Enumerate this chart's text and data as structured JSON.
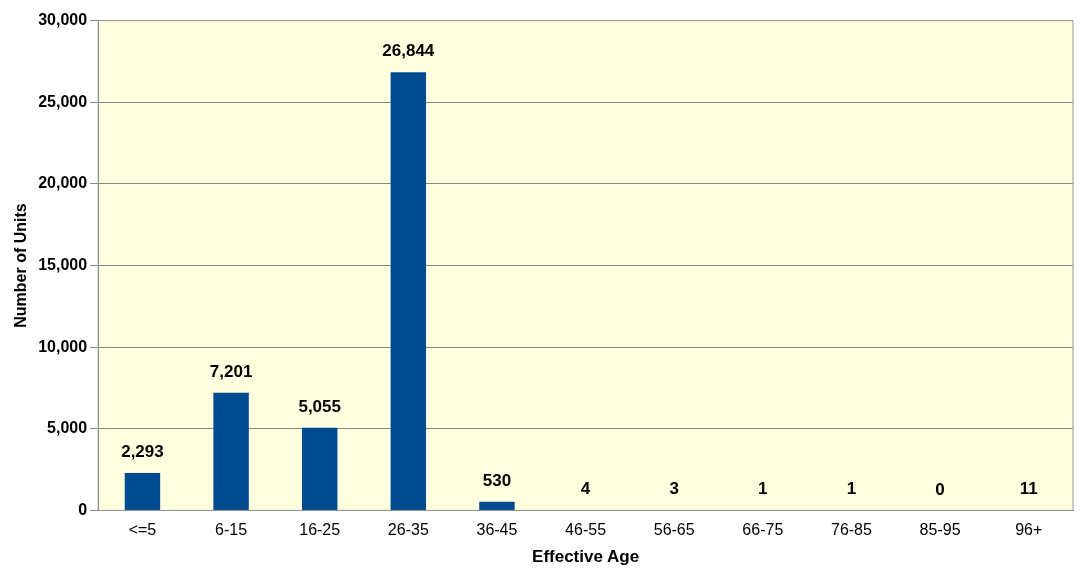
{
  "chart_data": {
    "type": "bar",
    "xlabel": "Effective Age",
    "ylabel": "Number of Units",
    "categories": [
      "<=5",
      "6-15",
      "16-25",
      "26-35",
      "36-45",
      "46-55",
      "56-65",
      "66-75",
      "76-85",
      "85-95",
      "96+"
    ],
    "values": [
      2293,
      7201,
      5055,
      26844,
      530,
      4,
      3,
      1,
      1,
      0,
      11
    ],
    "value_labels": [
      "2,293",
      "7,201",
      "5,055",
      "26,844",
      "530",
      "4",
      "3",
      "1",
      "1",
      "0",
      "11"
    ],
    "color": "#004a8f",
    "ylim": [
      0,
      30000
    ],
    "yticks": [
      {
        "value": 0,
        "label": "0"
      },
      {
        "value": 5000,
        "label": "5,000"
      },
      {
        "value": 10000,
        "label": "10,000"
      },
      {
        "value": 15000,
        "label": "15,000"
      },
      {
        "value": 20000,
        "label": "20,000"
      },
      {
        "value": 25000,
        "label": "25,000"
      },
      {
        "value": 30000,
        "label": "30,000"
      }
    ],
    "grid": "y",
    "legend": false
  }
}
